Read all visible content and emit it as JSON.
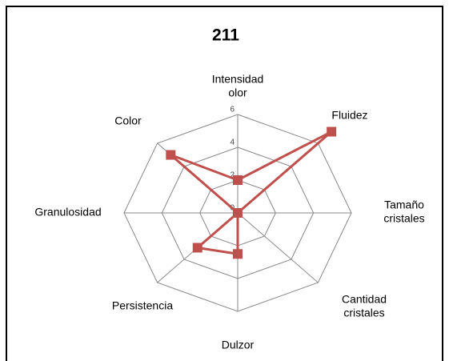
{
  "chart_data": {
    "type": "radar",
    "title": "211",
    "categories": [
      "Intensidad\nolor",
      "Fluidez",
      "Tamaño\ncristales",
      "Cantidad\ncristales",
      "Dulzor",
      "Persistencia",
      "Granulosidad",
      "Color"
    ],
    "series": [
      {
        "name": "211",
        "color": "#c0504d",
        "values": [
          2,
          7,
          0,
          0,
          2.5,
          3,
          0,
          5
        ]
      }
    ],
    "ylim": [
      0,
      6
    ],
    "yticks": [
      0,
      2,
      4,
      6
    ],
    "grid": true
  }
}
